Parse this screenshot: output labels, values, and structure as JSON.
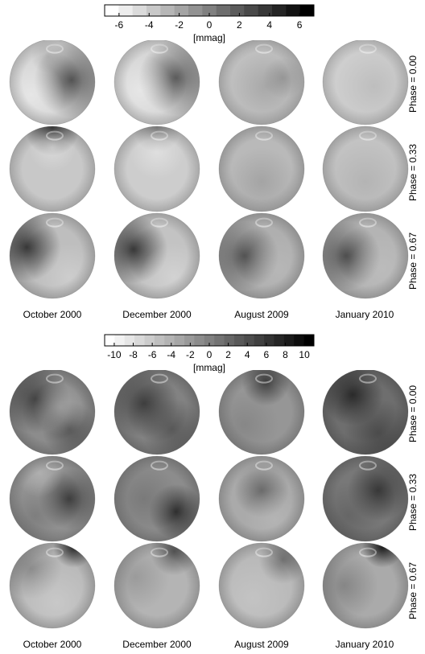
{
  "panels": [
    {
      "colorbar": {
        "ticks": [
          "-6",
          "-4",
          "-2",
          "0",
          "2",
          "4",
          "6"
        ],
        "unit": "[mmag]"
      },
      "columns": [
        "October 2000",
        "December 2000",
        "August 2009",
        "January 2010"
      ],
      "rows": [
        "Phase = 0.00",
        "Phase = 0.33",
        "Phase = 0.67"
      ]
    },
    {
      "colorbar": {
        "ticks": [
          "-10",
          "-8",
          "-6",
          "-4",
          "-2",
          "0",
          "2",
          "4",
          "6",
          "8",
          "10"
        ],
        "unit": "[mmag]"
      },
      "columns": [
        "October 2000",
        "December 2000",
        "August 2009",
        "January 2010"
      ],
      "rows": [
        "Phase = 0.00",
        "Phase = 0.33",
        "Phase = 0.67"
      ]
    }
  ]
}
